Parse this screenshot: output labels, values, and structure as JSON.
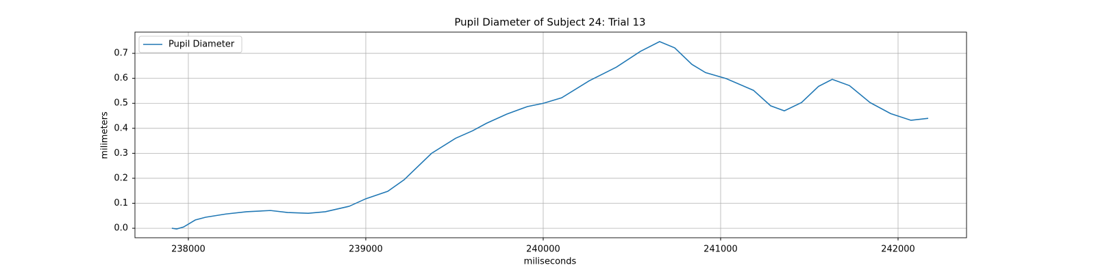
{
  "chart_data": {
    "type": "line",
    "title": "Pupil Diameter of Subject 24: Trial 13",
    "xlabel": "miliseconds",
    "ylabel": "milimeters",
    "x": [
      237907,
      237934,
      237973,
      238039,
      238097,
      238212,
      238328,
      238463,
      238560,
      238676,
      238772,
      238907,
      239000,
      239124,
      239216,
      239371,
      239506,
      239602,
      239680,
      239795,
      239911,
      240000,
      240104,
      240259,
      240413,
      240548,
      240656,
      240741,
      240838,
      240915,
      241031,
      241185,
      241282,
      241359,
      241456,
      241552,
      241629,
      241726,
      241842,
      241958,
      242073,
      242170
    ],
    "series": [
      {
        "name": "Pupil Diameter",
        "color": "#1f77b4",
        "values": [
          0.0,
          -0.003,
          0.005,
          0.033,
          0.044,
          0.057,
          0.066,
          0.071,
          0.063,
          0.06,
          0.066,
          0.088,
          0.118,
          0.148,
          0.194,
          0.3,
          0.36,
          0.39,
          0.42,
          0.457,
          0.487,
          0.5,
          0.522,
          0.59,
          0.645,
          0.708,
          0.747,
          0.722,
          0.656,
          0.623,
          0.599,
          0.552,
          0.49,
          0.47,
          0.503,
          0.568,
          0.596,
          0.571,
          0.503,
          0.459,
          0.432,
          0.44
        ]
      }
    ],
    "xlim": [
      237699,
      242386
    ],
    "ylim": [
      -0.038,
      0.785
    ],
    "xticks": [
      238000,
      239000,
      240000,
      241000,
      242000
    ],
    "yticks": [
      {
        "value": 0,
        "label": "0.0"
      },
      0.1,
      0.2,
      0.3,
      0.4,
      0.5,
      0.6,
      0.7
    ],
    "grid": true,
    "legend": "upper left"
  }
}
